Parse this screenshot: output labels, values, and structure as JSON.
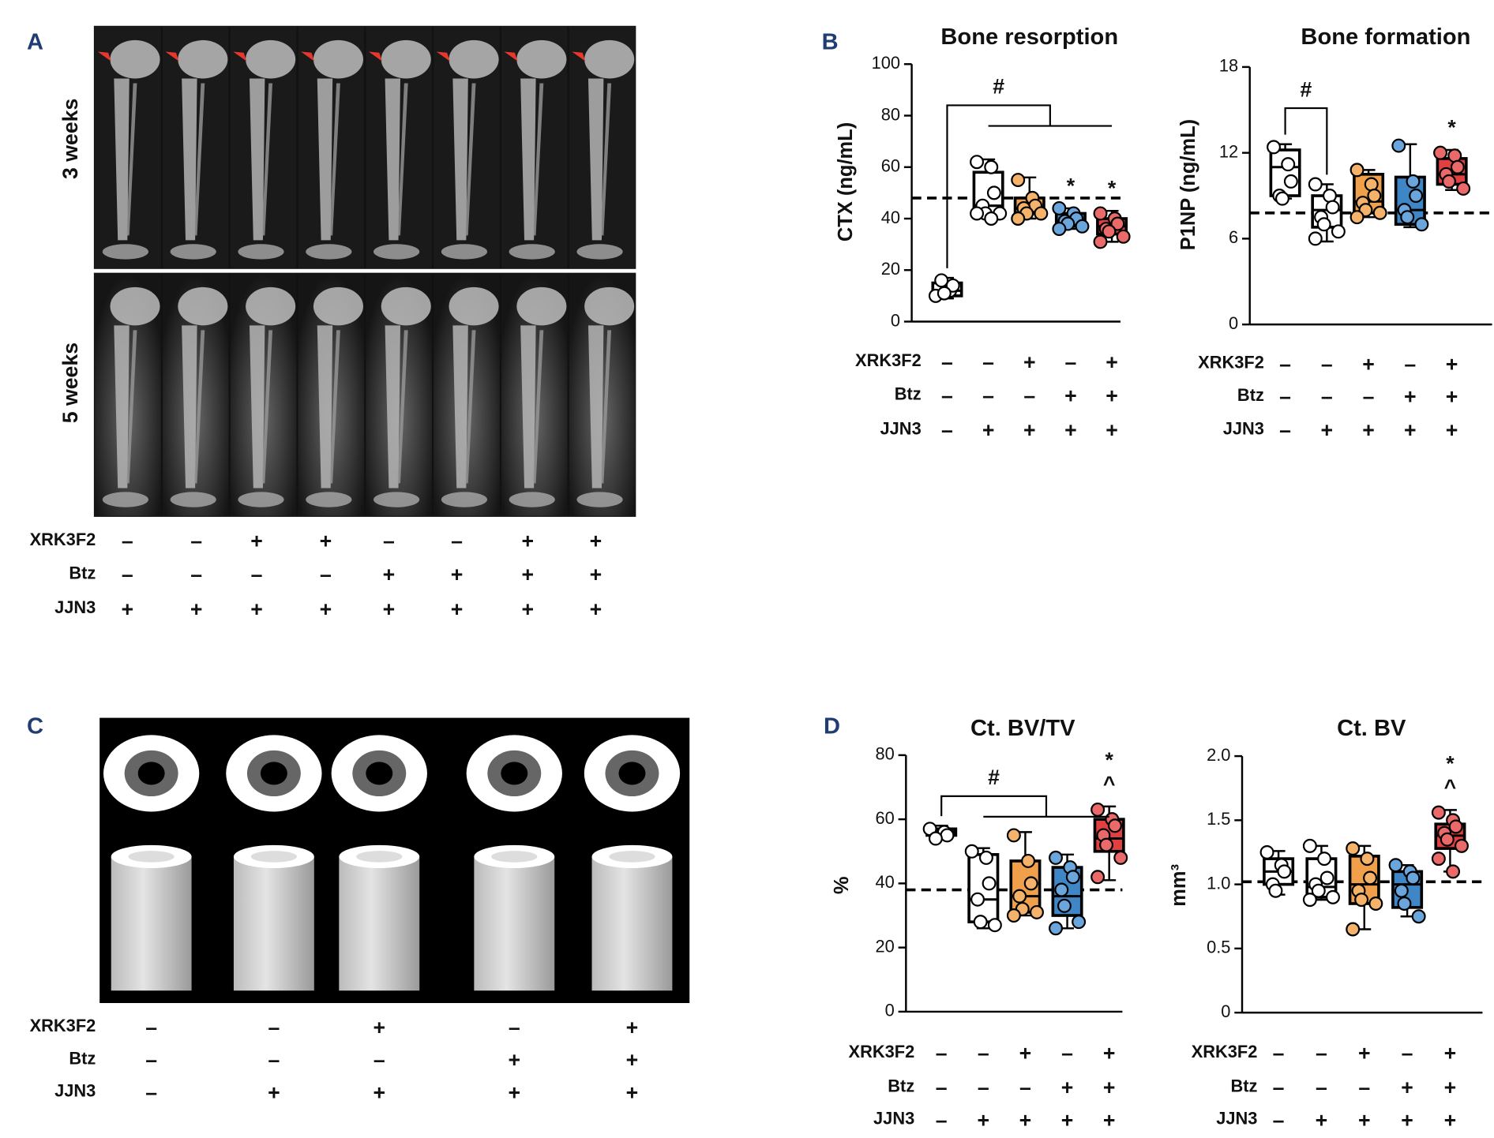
{
  "figure": {
    "panel_labels": [
      "A",
      "B",
      "C",
      "D"
    ],
    "panel_a": {
      "rows": [
        "3 weeks",
        "5 weeks"
      ],
      "treatments": [
        {
          "name": "XRK3F2",
          "signs": [
            "–",
            "–",
            "+",
            "+",
            "–",
            "–",
            "+",
            "+"
          ]
        },
        {
          "name": "Btz",
          "signs": [
            "–",
            "–",
            "–",
            "–",
            "+",
            "+",
            "+",
            "+"
          ]
        },
        {
          "name": "JJN3",
          "signs": [
            "+",
            "+",
            "+",
            "+",
            "+",
            "+",
            "+",
            "+"
          ]
        }
      ]
    },
    "panel_c": {
      "treatments": [
        {
          "name": "XRK3F2",
          "signs": [
            "–",
            "–",
            "+",
            "–",
            "+"
          ]
        },
        {
          "name": "Btz",
          "signs": [
            "–",
            "–",
            "–",
            "+",
            "+"
          ]
        },
        {
          "name": "JJN3",
          "signs": [
            "–",
            "+",
            "+",
            "+",
            "+"
          ]
        }
      ]
    }
  },
  "chart_data": [
    {
      "type": "box",
      "title": "Bone resorption",
      "ylabel": "CTX (ng/mL)",
      "ylim": [
        0,
        100
      ],
      "yticks": [
        0,
        20,
        40,
        60,
        80,
        100
      ],
      "reference": 48,
      "bracket": {
        "text": "#",
        "from": 0,
        "to": [
          1,
          4
        ]
      },
      "series": [
        {
          "color": "#ffffff",
          "point_color": "#ffffff",
          "min": 9,
          "q1": 10,
          "median": 12,
          "q3": 15,
          "max": 17,
          "points": [
            10,
            12,
            14,
            16,
            11
          ],
          "annotation": null
        },
        {
          "color": "#ffffff",
          "point_color": "#ffffff",
          "min": 40,
          "q1": 42,
          "median": 45,
          "q3": 58,
          "max": 63,
          "points": [
            62,
            60,
            50,
            45,
            42,
            42,
            42,
            40
          ],
          "annotation": null
        },
        {
          "color": "#f0a04b",
          "point_color": "#f5b26b",
          "min": 40,
          "q1": 42,
          "median": 44,
          "q3": 48,
          "max": 56,
          "points": [
            55,
            48,
            45,
            44,
            42,
            42,
            40
          ],
          "annotation": null
        },
        {
          "color": "#3f86c6",
          "point_color": "#6aa6dc",
          "min": 36,
          "q1": 37,
          "median": 39,
          "q3": 42,
          "max": 44,
          "points": [
            44,
            42,
            40,
            39,
            38,
            37,
            36
          ],
          "annotation": [
            "*"
          ]
        },
        {
          "color": "#e0403f",
          "point_color": "#ea6a6a",
          "min": 31,
          "q1": 34,
          "median": 37,
          "q3": 40,
          "max": 43,
          "points": [
            42,
            40,
            38,
            36,
            35,
            33,
            31
          ],
          "annotation": [
            "*"
          ]
        }
      ],
      "treatments": [
        {
          "name": "XRK3F2",
          "signs": [
            "–",
            "–",
            "+",
            "–",
            "+"
          ]
        },
        {
          "name": "Btz",
          "signs": [
            "–",
            "–",
            "–",
            "+",
            "+"
          ]
        },
        {
          "name": "JJN3",
          "signs": [
            "–",
            "+",
            "+",
            "+",
            "+"
          ]
        }
      ]
    },
    {
      "type": "box",
      "title": "Bone formation",
      "ylabel": "P1NP (ng/mL)",
      "ylim": [
        0,
        18
      ],
      "yticks": [
        0,
        6,
        12,
        18
      ],
      "reference": 7.8,
      "bracket": {
        "text": "#",
        "from": 0,
        "to": [
          1,
          1
        ]
      },
      "series": [
        {
          "color": "#ffffff",
          "point_color": "#ffffff",
          "min": 8.8,
          "q1": 9,
          "median": 11,
          "q3": 12.2,
          "max": 12.6,
          "points": [
            12.4,
            11.2,
            10,
            9,
            8.8
          ],
          "annotation": null
        },
        {
          "color": "#ffffff",
          "point_color": "#ffffff",
          "min": 5.8,
          "q1": 6.8,
          "median": 8,
          "q3": 9,
          "max": 9.8,
          "points": [
            9.8,
            9,
            8.2,
            7.5,
            7,
            6.5,
            6
          ],
          "annotation": null
        },
        {
          "color": "#f0a04b",
          "point_color": "#f5b26b",
          "min": 7.5,
          "q1": 7.8,
          "median": 8.6,
          "q3": 10.5,
          "max": 10.8,
          "points": [
            10.8,
            9.8,
            9,
            8.5,
            8,
            7.8,
            7.5
          ],
          "annotation": null
        },
        {
          "color": "#3f86c6",
          "point_color": "#6aa6dc",
          "min": 6.8,
          "q1": 7,
          "median": 8,
          "q3": 10.3,
          "max": 12.6,
          "points": [
            12.5,
            10,
            9,
            8,
            7.5,
            7
          ],
          "annotation": null
        },
        {
          "color": "#e0403f",
          "point_color": "#ea6a6a",
          "min": 9.4,
          "q1": 9.8,
          "median": 10.5,
          "q3": 11.6,
          "max": 12.2,
          "points": [
            12,
            11.8,
            11,
            10.5,
            10,
            9.5
          ],
          "annotation": [
            "*"
          ]
        }
      ],
      "treatments": [
        {
          "name": "XRK3F2",
          "signs": [
            "–",
            "–",
            "+",
            "–",
            "+"
          ]
        },
        {
          "name": "Btz",
          "signs": [
            "–",
            "–",
            "–",
            "+",
            "+"
          ]
        },
        {
          "name": "JJN3",
          "signs": [
            "–",
            "+",
            "+",
            "+",
            "+"
          ]
        }
      ]
    },
    {
      "type": "box",
      "title": "Ct. BV/TV",
      "ylabel": "%",
      "ylim": [
        0,
        80
      ],
      "yticks": [
        0,
        20,
        40,
        60,
        80
      ],
      "reference": 38,
      "bracket": {
        "text": "#",
        "from": 0,
        "to": [
          1,
          4
        ]
      },
      "series": [
        {
          "color": "#111111",
          "point_color": "#ffffff",
          "min": 54,
          "q1": 55,
          "median": 56,
          "q3": 57,
          "max": 58,
          "points": [
            57,
            56,
            55,
            54
          ],
          "annotation": null
        },
        {
          "color": "#ffffff",
          "point_color": "#ffffff",
          "min": 26,
          "q1": 28,
          "median": 35,
          "q3": 49,
          "max": 51,
          "points": [
            50,
            48,
            40,
            35,
            28,
            27
          ],
          "annotation": null
        },
        {
          "color": "#f0a04b",
          "point_color": "#f5b26b",
          "min": 30,
          "q1": 31,
          "median": 36,
          "q3": 47,
          "max": 56,
          "points": [
            55,
            47,
            40,
            36,
            32,
            31,
            30
          ],
          "annotation": null
        },
        {
          "color": "#3f86c6",
          "point_color": "#6aa6dc",
          "min": 26,
          "q1": 30,
          "median": 36,
          "q3": 45,
          "max": 49,
          "points": [
            48,
            45,
            42,
            38,
            33,
            28,
            26
          ],
          "annotation": null
        },
        {
          "color": "#e0403f",
          "point_color": "#ea6a6a",
          "min": 41,
          "q1": 50,
          "median": 54,
          "q3": 60,
          "max": 64,
          "points": [
            63,
            60,
            58,
            55,
            52,
            48,
            42
          ],
          "annotation": [
            "*",
            "^"
          ]
        }
      ],
      "treatments": [
        {
          "name": "XRK3F2",
          "signs": [
            "–",
            "–",
            "+",
            "–",
            "+"
          ]
        },
        {
          "name": "Btz",
          "signs": [
            "–",
            "–",
            "–",
            "+",
            "+"
          ]
        },
        {
          "name": "JJN3",
          "signs": [
            "–",
            "+",
            "+",
            "+",
            "+"
          ]
        }
      ]
    },
    {
      "type": "box",
      "title": "Ct. BV",
      "ylabel": "mm³",
      "ylim": [
        0,
        2
      ],
      "yticks": [
        0,
        0.5,
        {
          "value": 1,
          "label": "1.0"
        },
        1.5,
        {
          "value": 2,
          "label": "2.0"
        }
      ],
      "reference": 1.02,
      "bracket": null,
      "series": [
        {
          "color": "#ffffff",
          "point_color": "#ffffff",
          "min": 0.92,
          "q1": 1.0,
          "median": 1.1,
          "q3": 1.2,
          "max": 1.26,
          "points": [
            1.25,
            1.15,
            1.1,
            1.0,
            0.95
          ],
          "annotation": null
        },
        {
          "color": "#ffffff",
          "point_color": "#ffffff",
          "min": 0.88,
          "q1": 0.9,
          "median": 0.98,
          "q3": 1.2,
          "max": 1.3,
          "points": [
            1.3,
            1.2,
            1.05,
            1.0,
            0.95,
            0.9,
            0.88
          ],
          "annotation": null
        },
        {
          "color": "#f0a04b",
          "point_color": "#f5b26b",
          "min": 0.65,
          "q1": 0.85,
          "median": 1.0,
          "q3": 1.22,
          "max": 1.3,
          "points": [
            1.28,
            1.2,
            1.05,
            0.95,
            0.88,
            0.85,
            0.65
          ],
          "annotation": null
        },
        {
          "color": "#3f86c6",
          "point_color": "#6aa6dc",
          "min": 0.75,
          "q1": 0.82,
          "median": 1.0,
          "q3": 1.1,
          "max": 1.15,
          "points": [
            1.15,
            1.1,
            1.05,
            0.95,
            0.85,
            0.75
          ],
          "annotation": null
        },
        {
          "color": "#e0403f",
          "point_color": "#ea6a6a",
          "min": 1.1,
          "q1": 1.28,
          "median": 1.38,
          "q3": 1.47,
          "max": 1.58,
          "points": [
            1.56,
            1.5,
            1.45,
            1.4,
            1.35,
            1.3,
            1.2,
            1.1
          ],
          "annotation": [
            "*",
            "^"
          ]
        }
      ],
      "treatments": [
        {
          "name": "XRK3F2",
          "signs": [
            "–",
            "–",
            "+",
            "–",
            "+"
          ]
        },
        {
          "name": "Btz",
          "signs": [
            "–",
            "–",
            "–",
            "+",
            "+"
          ]
        },
        {
          "name": "JJN3",
          "signs": [
            "–",
            "+",
            "+",
            "+",
            "+"
          ]
        }
      ]
    }
  ]
}
